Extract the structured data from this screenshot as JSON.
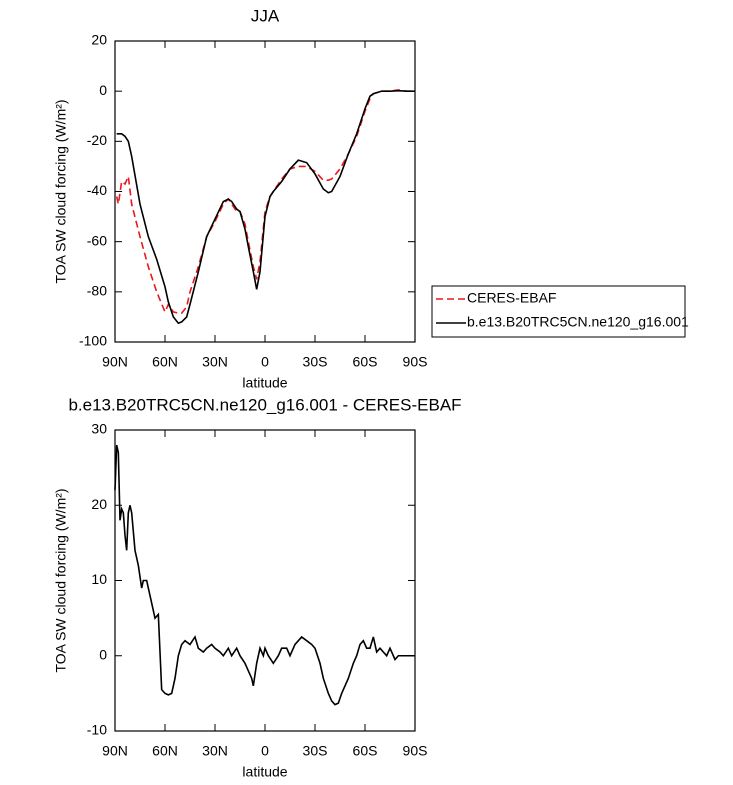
{
  "chart_data": [
    {
      "type": "line",
      "title": "JJA",
      "xlabel": "latitude",
      "ylabel": "TOA SW cloud forcing (W/m²)",
      "x": [
        89,
        88,
        86,
        84,
        82,
        80,
        75,
        70,
        65,
        60,
        58,
        55,
        52,
        50,
        47,
        45,
        40,
        35,
        30,
        25,
        22,
        20,
        17,
        15,
        12,
        10,
        7,
        5,
        3,
        0,
        -3,
        -5,
        -10,
        -15,
        -20,
        -25,
        -30,
        -35,
        -38,
        -40,
        -45,
        -50,
        -55,
        -60,
        -63,
        -65,
        -70,
        -75,
        -80,
        -85,
        -90
      ],
      "series": [
        {
          "name": "CERES-EBAF",
          "color": "#e8191c",
          "linestyle": "dashed",
          "values": [
            -42,
            -45,
            -36,
            -37,
            -34,
            -45,
            -58,
            -70,
            -80,
            -88,
            -85,
            -88,
            -88.5,
            -88.5,
            -86,
            -80,
            -70,
            -58,
            -52,
            -45,
            -43,
            -45,
            -48,
            -48,
            -53,
            -60,
            -70,
            -75,
            -68,
            -48,
            -42,
            -40,
            -35,
            -31,
            -30,
            -30,
            -32,
            -35.5,
            -35.5,
            -35,
            -31,
            -25,
            -18,
            -8,
            -3,
            -1,
            0,
            0,
            0.5,
            0,
            0
          ]
        },
        {
          "name": "b.e13.B20TRC5CN.ne120_g16.001",
          "color": "#000000",
          "linestyle": "solid",
          "values": [
            -17,
            -17,
            -17,
            -18,
            -20,
            -26,
            -45,
            -58,
            -67,
            -78,
            -84,
            -90,
            -92.5,
            -92,
            -90,
            -85,
            -72,
            -58,
            -51,
            -44,
            -43,
            -44,
            -47,
            -48,
            -55,
            -62,
            -72,
            -79,
            -72,
            -50,
            -42,
            -40,
            -36,
            -31,
            -27.5,
            -28.5,
            -33,
            -39,
            -40.5,
            -40,
            -34,
            -25,
            -17,
            -7,
            -2,
            -1,
            0,
            0,
            0.2,
            0,
            0
          ]
        }
      ],
      "xlim": [
        90,
        -90
      ],
      "xticks": [
        {
          "value": 90,
          "label": "90N"
        },
        {
          "value": 60,
          "label": "60N"
        },
        {
          "value": 30,
          "label": "30N"
        },
        0,
        {
          "value": -30,
          "label": "30S"
        },
        {
          "value": -60,
          "label": "60S"
        },
        {
          "value": -90,
          "label": "90S"
        }
      ],
      "ylim": [
        -100,
        20
      ],
      "yticks": [
        -100,
        -80,
        -60,
        -40,
        -20,
        0,
        20
      ],
      "legend": "right"
    },
    {
      "type": "line",
      "title": "b.e13.B20TRC5CN.ne120_g16.001 - CERES-EBAF",
      "xlabel": "latitude",
      "ylabel": "TOA SW cloud forcing (W/m²)",
      "x": [
        90,
        89,
        88,
        87,
        86,
        85,
        84,
        83,
        82,
        81,
        80,
        78,
        76,
        74,
        73,
        71,
        70,
        68,
        66,
        64,
        62,
        60,
        58,
        56,
        54,
        52,
        50,
        48,
        45,
        42,
        40,
        37,
        35,
        32,
        30,
        27,
        25,
        22,
        20,
        17,
        15,
        12,
        10,
        8,
        7,
        5,
        3,
        1,
        0,
        -2,
        -5,
        -8,
        -10,
        -13,
        -15,
        -18,
        -20,
        -22,
        -25,
        -28,
        -30,
        -33,
        -35,
        -38,
        -40,
        -42,
        -44,
        -46,
        -50,
        -53,
        -55,
        -57,
        -59,
        -61,
        -63,
        -65,
        -67,
        -69,
        -71,
        -73,
        -75,
        -78,
        -80,
        -83,
        -86,
        -90
      ],
      "series": [
        {
          "color": "#000000",
          "linestyle": "solid",
          "values": [
            22,
            28,
            27,
            18,
            19.5,
            19,
            16,
            14,
            19,
            20,
            19,
            14,
            12,
            9,
            10,
            10,
            9,
            7,
            5,
            5.5,
            -4.5,
            -5,
            -5.2,
            -5,
            -3,
            0,
            1.5,
            2,
            1.5,
            2.5,
            1,
            0.5,
            1,
            1.5,
            1,
            0.5,
            0,
            1,
            0,
            1,
            0,
            -1,
            -2,
            -3,
            -4,
            -1,
            1,
            0,
            1,
            0,
            -1,
            0,
            1,
            1,
            0,
            1.5,
            2,
            2.5,
            2,
            1.5,
            1,
            -1,
            -3,
            -5,
            -6,
            -6.5,
            -6.3,
            -5,
            -3,
            -1,
            0,
            1.5,
            2,
            1,
            1,
            2.5,
            0.5,
            1,
            0.5,
            0,
            1,
            -0.5,
            0,
            0,
            0,
            0
          ]
        }
      ],
      "xlim": [
        90,
        -90
      ],
      "xticks": [
        {
          "value": 90,
          "label": "90N"
        },
        {
          "value": 60,
          "label": "60N"
        },
        {
          "value": 30,
          "label": "30N"
        },
        0,
        {
          "value": -30,
          "label": "30S"
        },
        {
          "value": -60,
          "label": "60S"
        },
        {
          "value": -90,
          "label": "90S"
        }
      ],
      "ylim": [
        -10,
        30
      ],
      "yticks": [
        -10,
        0,
        10,
        20,
        30
      ]
    }
  ]
}
